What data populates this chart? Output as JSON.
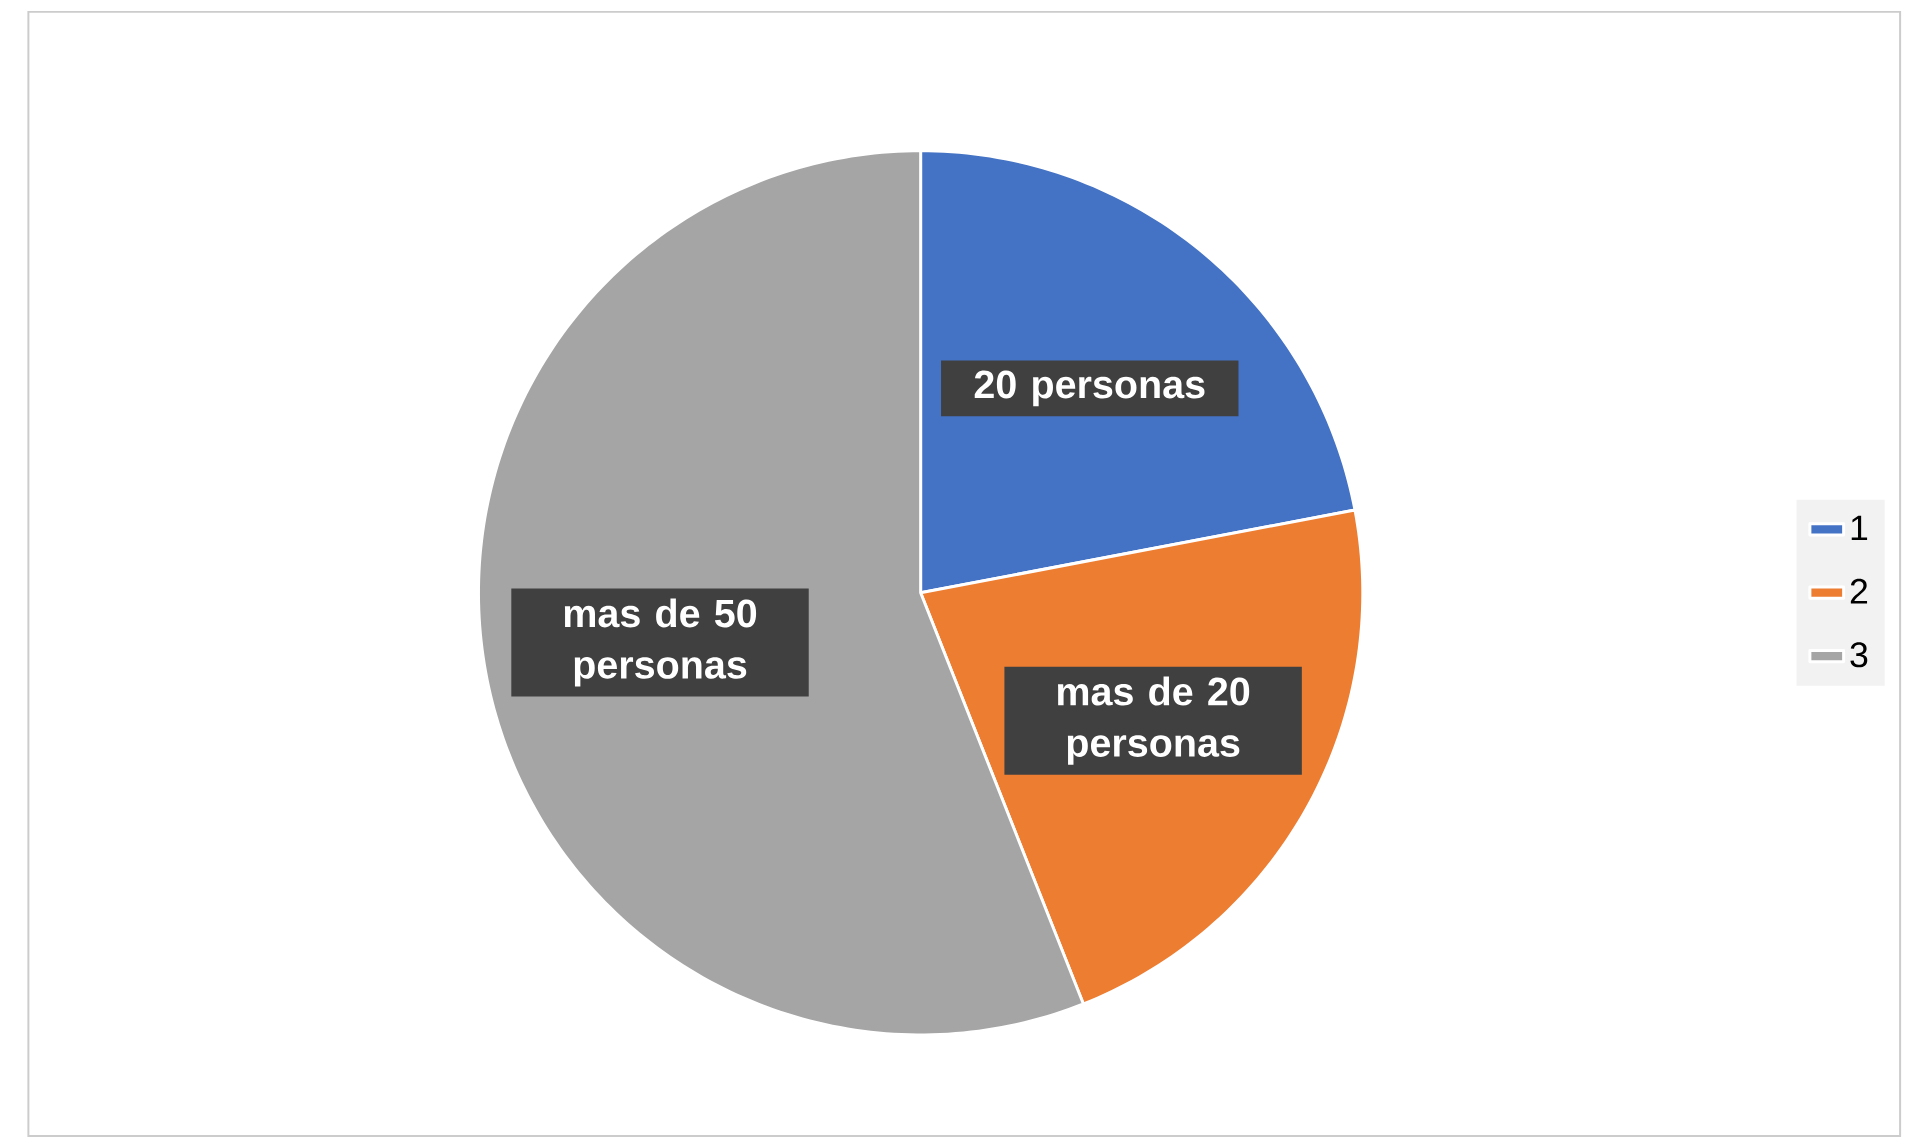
{
  "chart_data": {
    "type": "pie",
    "categories": [
      "1",
      "2",
      "3"
    ],
    "values": [
      22,
      22,
      56
    ],
    "colors": [
      "#4472c4",
      "#ed7d31",
      "#a5a5a5"
    ],
    "annotations": [
      "20 personas",
      "mas de 20 personas",
      "mas de 50 personas"
    ],
    "legend": "right"
  }
}
